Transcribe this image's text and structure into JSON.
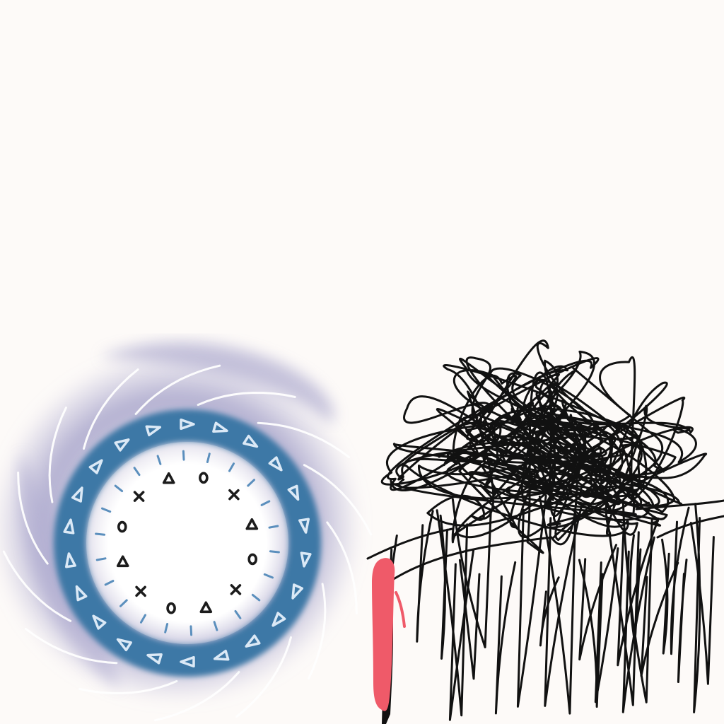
{
  "canvas": {
    "background": "#fdfaf8"
  },
  "colors": {
    "vortex": "#b5b2d4",
    "ring": "#3d78a6",
    "ring_glow": "#ffffff",
    "inner_symbols": "#1c1c1c",
    "outer_triangles": "#dbe9f6",
    "swirl_lines": "#ffffff",
    "scribble": "#111111",
    "figure": "#ef5a69",
    "figure_shadow": "#111111"
  },
  "elements": {
    "portal": {
      "inner_symbols": [
        "triangle",
        "circle",
        "cross",
        "triangle",
        "circle",
        "cross",
        "triangle",
        "circle",
        "cross",
        "triangle",
        "circle",
        "cross"
      ],
      "outer_symbol": "triangle",
      "outer_symbol_count": 22
    },
    "scribble_cloud": {
      "style": "chaotic black pen scribble"
    },
    "figure": {
      "style": "small red standing figure with black shadow"
    }
  }
}
